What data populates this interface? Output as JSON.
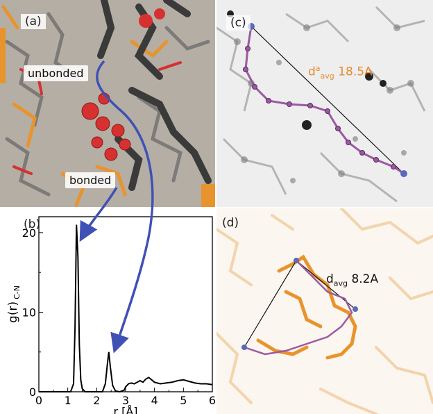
{
  "panels": {
    "a": {
      "label": "(a)",
      "tag_unbonded": "unbonded",
      "tag_bonded": "bonded"
    },
    "b": {
      "label": "(b)"
    },
    "c": {
      "label": "(c)",
      "dist_label_prefix": "d",
      "dist_sup": "a",
      "dist_sub": "avg",
      "dist_value": "18.5A",
      "dist_color": "#e88a2e"
    },
    "d": {
      "label": "(d)",
      "dist_label_prefix": "d",
      "dist_sub": "avg",
      "dist_value": "8.2A",
      "dist_color": "#111111"
    }
  },
  "colors": {
    "arrow": "#3f51b5",
    "red": "#d63030",
    "orange": "#e8942e",
    "dark": "#3a3a3a",
    "chain": "#9a5aa0"
  },
  "chart_data": {
    "type": "line",
    "title": "",
    "xlabel": "r [Å]",
    "ylabel": "g(r)",
    "ylabel_sub": "C-N",
    "xlim": [
      0,
      6
    ],
    "ylim": [
      0,
      22
    ],
    "x_ticks": [
      "0",
      "1",
      "2",
      "3",
      "4",
      "5",
      "6"
    ],
    "y_ticks": [
      "0",
      "10",
      "20"
    ],
    "series": [
      {
        "x": [
          0.0,
          1.1,
          1.2,
          1.25,
          1.3,
          1.35,
          1.4,
          1.45,
          1.5,
          1.6,
          2.2,
          2.3,
          2.37,
          2.42,
          2.47,
          2.55,
          2.65,
          2.8,
          2.95,
          3.0,
          3.1,
          3.2,
          3.3,
          3.4,
          3.5,
          3.6,
          3.7,
          3.8,
          3.9,
          4.0,
          4.2,
          4.4,
          4.6,
          4.8,
          5.0,
          5.2,
          5.4,
          5.6,
          5.8,
          6.0
        ],
        "y": [
          0.0,
          0.0,
          1.0,
          8.0,
          21.0,
          17.0,
          6.0,
          1.5,
          0.4,
          0.0,
          0.0,
          1.0,
          3.5,
          5.0,
          3.2,
          0.8,
          0.1,
          0.0,
          0.2,
          0.6,
          1.0,
          1.1,
          1.0,
          1.2,
          1.4,
          1.2,
          1.6,
          1.8,
          1.5,
          1.2,
          1.0,
          1.1,
          1.2,
          1.4,
          1.5,
          1.3,
          1.1,
          1.0,
          1.0,
          0.9
        ]
      }
    ]
  }
}
